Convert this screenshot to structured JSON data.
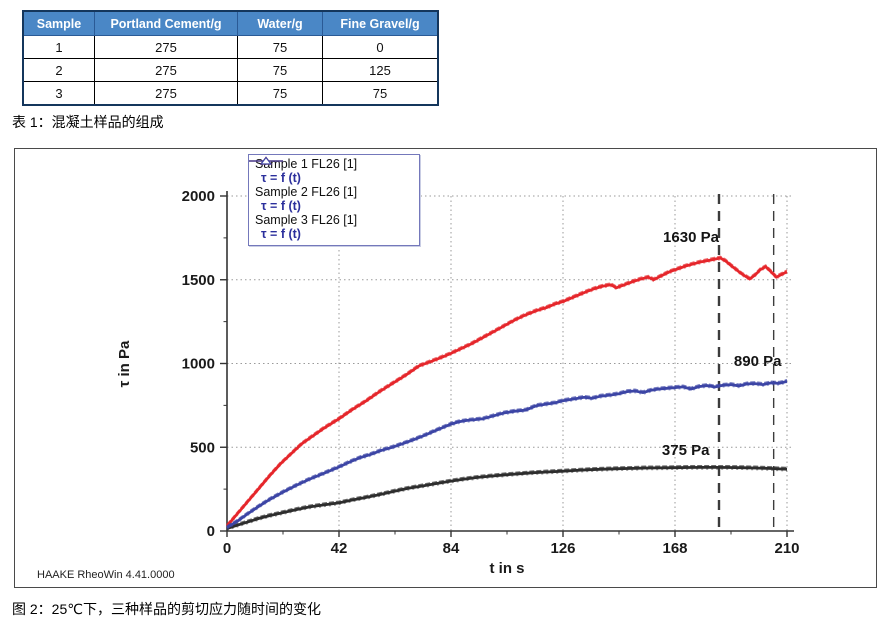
{
  "table1": {
    "caption": "表 1：混凝土样品的组成",
    "headers": [
      "Sample",
      "Portland Cement/g",
      "Water/g",
      "Fine Gravel/g"
    ],
    "rows": [
      [
        "1",
        "275",
        "75",
        "0"
      ],
      [
        "2",
        "275",
        "75",
        "125"
      ],
      [
        "3",
        "275",
        "75",
        "75"
      ]
    ],
    "header_bg": "#4a87c6"
  },
  "figure": {
    "caption": "图 2：25℃下，三种样品的剪切应力随时间的变化",
    "watermark": "HAAKE RheoWin 4.41.0000",
    "legend": [
      {
        "name": "Sample 1 FL26 [1]",
        "formula": "τ = f (t)",
        "color": "#3a3a3a"
      },
      {
        "name": "Sample 2 FL26 [1]",
        "formula": "τ = f (t)",
        "color": "#e5262b"
      },
      {
        "name": "Sample 3 FL26 [1]",
        "formula": "τ = f (t)",
        "color": "#3c45a5"
      }
    ],
    "formula_color": "#2b2f9c"
  },
  "chart_data": {
    "type": "line",
    "xlabel": "t in s",
    "ylabel": "τ in Pa",
    "xlim": [
      0,
      210
    ],
    "ylim": [
      0,
      2000
    ],
    "xticks": [
      0,
      42,
      84,
      126,
      168,
      210
    ],
    "yticks": [
      0,
      500,
      1000,
      1500,
      2000
    ],
    "minor_xtick_step": 21,
    "minor_ytick_step": 250,
    "grid": "dotted",
    "grid_color": "#9a9a9a",
    "legend_position": "top-left",
    "reference_lines_x": [
      184.5,
      205
    ],
    "reference_line_color": "#3c3c3c",
    "annotations": [
      {
        "text": "1630 Pa",
        "t": 174,
        "pa": 1725
      },
      {
        "text": "890 Pa",
        "t": 199,
        "pa": 985
      },
      {
        "text": "375 Pa",
        "t": 172,
        "pa": 455
      }
    ],
    "series": [
      {
        "name": "Sample 1 FL26 [1]",
        "label": "τ = f (t)",
        "color": "#2d2d2d",
        "final_value_pa": 375,
        "points": [
          [
            0,
            15
          ],
          [
            4,
            35
          ],
          [
            8,
            55
          ],
          [
            12,
            75
          ],
          [
            16,
            92
          ],
          [
            21,
            110
          ],
          [
            26,
            128
          ],
          [
            31,
            144
          ],
          [
            36,
            155
          ],
          [
            42,
            168
          ],
          [
            47,
            185
          ],
          [
            52,
            200
          ],
          [
            57,
            216
          ],
          [
            63,
            238
          ],
          [
            68,
            255
          ],
          [
            73,
            268
          ],
          [
            78,
            282
          ],
          [
            84,
            298
          ],
          [
            89,
            310
          ],
          [
            94,
            320
          ],
          [
            99,
            328
          ],
          [
            105,
            336
          ],
          [
            110,
            342
          ],
          [
            115,
            348
          ],
          [
            120,
            352
          ],
          [
            126,
            357
          ],
          [
            131,
            362
          ],
          [
            136,
            366
          ],
          [
            141,
            369
          ],
          [
            147,
            372
          ],
          [
            152,
            374
          ],
          [
            157,
            376
          ],
          [
            162,
            377
          ],
          [
            168,
            378
          ],
          [
            173,
            379
          ],
          [
            178,
            380
          ],
          [
            183,
            380
          ],
          [
            188,
            379
          ],
          [
            193,
            378
          ],
          [
            198,
            376
          ],
          [
            203,
            374
          ],
          [
            207,
            371
          ],
          [
            210,
            369
          ]
        ]
      },
      {
        "name": "Sample 2 FL26 [1]",
        "label": "τ = f (t)",
        "color": "#e5262b",
        "final_value_pa": 1630,
        "points": [
          [
            0,
            30
          ],
          [
            4,
            105
          ],
          [
            8,
            180
          ],
          [
            12,
            255
          ],
          [
            16,
            330
          ],
          [
            20,
            400
          ],
          [
            24,
            460
          ],
          [
            28,
            520
          ],
          [
            32,
            565
          ],
          [
            36,
            610
          ],
          [
            42,
            670
          ],
          [
            47,
            725
          ],
          [
            52,
            775
          ],
          [
            57,
            830
          ],
          [
            62,
            880
          ],
          [
            67,
            930
          ],
          [
            72,
            985
          ],
          [
            77,
            1015
          ],
          [
            81,
            1040
          ],
          [
            84,
            1060
          ],
          [
            88,
            1090
          ],
          [
            92,
            1120
          ],
          [
            96,
            1155
          ],
          [
            100,
            1190
          ],
          [
            104,
            1225
          ],
          [
            108,
            1260
          ],
          [
            112,
            1290
          ],
          [
            116,
            1315
          ],
          [
            120,
            1335
          ],
          [
            123,
            1355
          ],
          [
            126,
            1370
          ],
          [
            129,
            1390
          ],
          [
            132,
            1410
          ],
          [
            135,
            1430
          ],
          [
            138,
            1448
          ],
          [
            141,
            1462
          ],
          [
            144,
            1470
          ],
          [
            146,
            1452
          ],
          [
            149,
            1470
          ],
          [
            152,
            1488
          ],
          [
            155,
            1503
          ],
          [
            158,
            1515
          ],
          [
            160,
            1500
          ],
          [
            163,
            1525
          ],
          [
            166,
            1548
          ],
          [
            169,
            1565
          ],
          [
            172,
            1582
          ],
          [
            175,
            1595
          ],
          [
            178,
            1608
          ],
          [
            181,
            1617
          ],
          [
            185,
            1630
          ],
          [
            187,
            1612
          ],
          [
            189,
            1585
          ],
          [
            191,
            1560
          ],
          [
            193,
            1535
          ],
          [
            196,
            1505
          ],
          [
            198,
            1528
          ],
          [
            200,
            1560
          ],
          [
            202,
            1578
          ],
          [
            204,
            1548
          ],
          [
            206,
            1515
          ],
          [
            208,
            1532
          ],
          [
            210,
            1548
          ]
        ]
      },
      {
        "name": "Sample 3 FL26 [1]",
        "label": "τ = f (t)",
        "color": "#3c45a5",
        "final_value_pa": 890,
        "points": [
          [
            0,
            20
          ],
          [
            4,
            60
          ],
          [
            8,
            105
          ],
          [
            12,
            148
          ],
          [
            16,
            188
          ],
          [
            21,
            232
          ],
          [
            26,
            272
          ],
          [
            31,
            310
          ],
          [
            36,
            342
          ],
          [
            42,
            382
          ],
          [
            46,
            412
          ],
          [
            50,
            438
          ],
          [
            54,
            458
          ],
          [
            58,
            482
          ],
          [
            62,
            500
          ],
          [
            66,
            522
          ],
          [
            70,
            545
          ],
          [
            74,
            570
          ],
          [
            78,
            598
          ],
          [
            81,
            618
          ],
          [
            84,
            638
          ],
          [
            87,
            652
          ],
          [
            90,
            660
          ],
          [
            93,
            665
          ],
          [
            96,
            670
          ],
          [
            100,
            688
          ],
          [
            104,
            705
          ],
          [
            108,
            715
          ],
          [
            112,
            722
          ],
          [
            116,
            748
          ],
          [
            120,
            758
          ],
          [
            123,
            765
          ],
          [
            126,
            778
          ],
          [
            130,
            788
          ],
          [
            134,
            798
          ],
          [
            137,
            792
          ],
          [
            140,
            805
          ],
          [
            144,
            812
          ],
          [
            147,
            820
          ],
          [
            150,
            832
          ],
          [
            153,
            836
          ],
          [
            156,
            826
          ],
          [
            159,
            840
          ],
          [
            162,
            848
          ],
          [
            165,
            852
          ],
          [
            168,
            856
          ],
          [
            171,
            860
          ],
          [
            174,
            848
          ],
          [
            177,
            862
          ],
          [
            180,
            868
          ],
          [
            183,
            860
          ],
          [
            186,
            870
          ],
          [
            189,
            874
          ],
          [
            192,
            866
          ],
          [
            195,
            878
          ],
          [
            198,
            880
          ],
          [
            201,
            874
          ],
          [
            204,
            884
          ],
          [
            207,
            882
          ],
          [
            210,
            893
          ]
        ]
      }
    ]
  }
}
